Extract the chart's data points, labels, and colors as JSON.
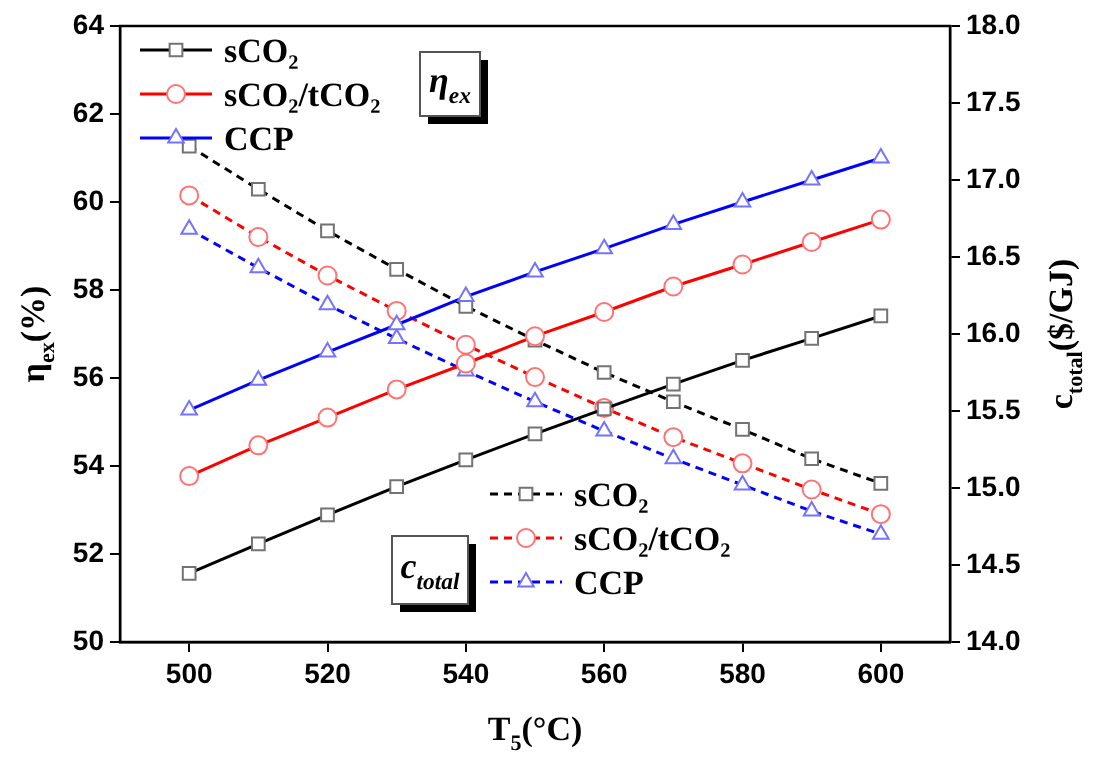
{
  "chart_data": {
    "type": "line",
    "xlabel": "T$_{5}$(°C)",
    "ylabel": "η$_{ex}$(%)",
    "y2label": "c$_{total}$($/GJ)",
    "x": [
      500,
      510,
      520,
      530,
      540,
      550,
      560,
      570,
      580,
      590,
      600
    ],
    "xlim": [
      490,
      610
    ],
    "xticks": [
      500,
      520,
      540,
      560,
      580,
      600
    ],
    "ylim": [
      50,
      64
    ],
    "yticks": [
      50,
      52,
      54,
      56,
      58,
      60,
      62,
      64
    ],
    "y2lim": [
      14,
      18
    ],
    "y2ticks": [
      {
        "value": 14,
        "label": "14.0"
      },
      {
        "value": 14.5,
        "label": "14.5"
      },
      {
        "value": 15,
        "label": "15.0"
      },
      {
        "value": 15.5,
        "label": "15.5"
      },
      {
        "value": 16,
        "label": "16.0"
      },
      {
        "value": 16.5,
        "label": "16.5"
      },
      {
        "value": 17,
        "label": "17.0"
      },
      {
        "value": 17.5,
        "label": "17.5"
      },
      {
        "value": 18,
        "label": "18.0"
      }
    ],
    "legend": "top left",
    "annotations": [
      "η$_{ex}$",
      "c$_{total}$"
    ],
    "series": [
      {
        "name": "sCO₂",
        "color": "#000000",
        "marker": "square",
        "line_style": "solid",
        "values": [
          51.56,
          52.23,
          52.89,
          53.53,
          54.14,
          54.73,
          55.3,
          55.86,
          56.4,
          56.9,
          57.41
        ]
      },
      {
        "name": "sCO₂/tCO₂",
        "color": "#ff0000",
        "marker": "circle",
        "line_style": "solid",
        "values": [
          53.77,
          54.47,
          55.1,
          55.74,
          56.33,
          56.95,
          57.5,
          58.08,
          58.58,
          59.09,
          59.6
        ]
      },
      {
        "name": "CCP",
        "color": "#0000ff",
        "marker": "triangle",
        "line_style": "solid",
        "values": [
          55.27,
          55.95,
          56.59,
          57.21,
          57.85,
          58.41,
          58.94,
          59.49,
          60.0,
          60.5,
          61.0
        ]
      },
      {
        "name": "sCO₂",
        "color": "#000000",
        "marker": "square",
        "line_style": "dashed",
        "axis": "y2",
        "values": [
          17.22,
          16.94,
          16.67,
          16.42,
          16.18,
          15.96,
          15.75,
          15.56,
          15.38,
          15.19,
          15.03
        ]
      },
      {
        "name": "sCO₂/tCO₂",
        "color": "#ff0000",
        "marker": "circle",
        "line_style": "dashed",
        "axis": "y2",
        "values": [
          16.9,
          16.63,
          16.38,
          16.15,
          15.93,
          15.72,
          15.52,
          15.33,
          15.16,
          14.99,
          14.83
        ]
      },
      {
        "name": "CCP",
        "color": "#0000ff",
        "marker": "triangle",
        "line_style": "dashed",
        "axis": "y2",
        "values": [
          16.68,
          16.43,
          16.19,
          15.97,
          15.76,
          15.56,
          15.37,
          15.19,
          15.02,
          14.85,
          14.7
        ]
      }
    ]
  }
}
